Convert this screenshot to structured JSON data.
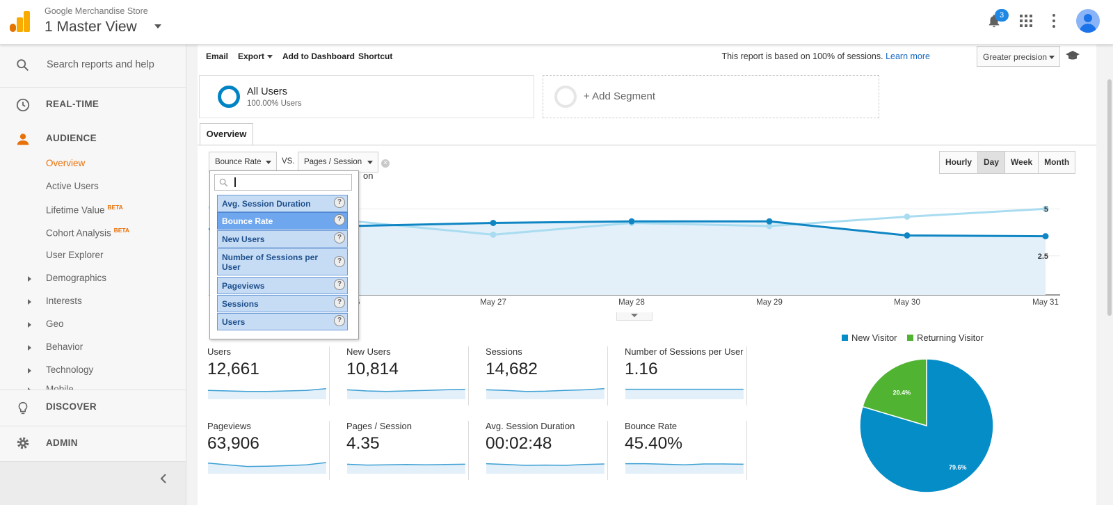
{
  "header": {
    "account_name": "Google Merchandise Store",
    "view_name": "1 Master View",
    "notification_count": "3"
  },
  "sidebar": {
    "search_placeholder": "Search reports and help",
    "realtime": "REAL-TIME",
    "audience": "AUDIENCE",
    "items": [
      {
        "label": "Overview",
        "badge": ""
      },
      {
        "label": "Active Users",
        "badge": ""
      },
      {
        "label": "Lifetime Value",
        "badge": "BETA"
      },
      {
        "label": "Cohort Analysis",
        "badge": "BETA"
      },
      {
        "label": "User Explorer",
        "badge": ""
      },
      {
        "label": "Demographics",
        "badge": ""
      },
      {
        "label": "Interests",
        "badge": ""
      },
      {
        "label": "Geo",
        "badge": ""
      },
      {
        "label": "Behavior",
        "badge": ""
      },
      {
        "label": "Technology",
        "badge": ""
      },
      {
        "label": "Mobile",
        "badge": ""
      }
    ],
    "discover": "DISCOVER",
    "admin": "ADMIN"
  },
  "toolbar": {
    "email": "Email",
    "export": "Export",
    "add_to_dashboard": "Add to Dashboard",
    "shortcut": "Shortcut",
    "report_note": "This report is based on 100% of sessions.",
    "learn_more": "Learn more",
    "precision": "Greater precision"
  },
  "segments": {
    "seg1_name": "All Users",
    "seg1_pct": "100.00% Users",
    "add_segment": "+ Add Segment"
  },
  "tabs": {
    "overview": "Overview"
  },
  "metric_selectors": {
    "primary": "Bounce Rate",
    "vs": "VS.",
    "secondary": "Pages / Session",
    "clear": "×"
  },
  "granularity": {
    "options": [
      "Hourly",
      "Day",
      "Week",
      "Month"
    ],
    "selected": "Day"
  },
  "dropdown": {
    "items": [
      "Avg. Session Duration",
      "Bounce Rate",
      "New Users",
      "Number of Sessions per User",
      "Pageviews",
      "Sessions",
      "Users"
    ],
    "selected": "Bounce Rate",
    "help_glyph": "?"
  },
  "chart_data": [
    {
      "type": "line",
      "x": [
        "May 26",
        "May 27",
        "May 28",
        "May 29",
        "May 30",
        "May 31"
      ],
      "x_tick_labels": [
        "26",
        "May 27",
        "May 28",
        "May 29",
        "May 30",
        "May 31"
      ],
      "series_title_fragment": "on",
      "y_right_ticks": [
        "5",
        "2.5"
      ],
      "series": [
        {
          "color": "#0f86c3",
          "values": [
            null,
            4.6,
            4.7,
            4.7,
            3.8,
            3.75
          ],
          "filled": true
        },
        {
          "color": "#a9dcf0",
          "values": [
            null,
            3.85,
            4.6,
            4.4,
            5.0,
            5.5
          ],
          "filled": false
        }
      ],
      "colors": {
        "area": "#e3f0fa"
      }
    },
    {
      "type": "pie",
      "legend_position": "top",
      "categories": [
        "New Visitor",
        "Returning Visitor"
      ],
      "values": [
        79.6,
        20.4
      ],
      "labels": [
        "79.6%",
        "20.4%"
      ],
      "colors": [
        "#058dc7",
        "#50b432"
      ]
    }
  ],
  "scorecards": [
    {
      "label": "Users",
      "value": "12,661"
    },
    {
      "label": "New Users",
      "value": "10,814"
    },
    {
      "label": "Sessions",
      "value": "14,682"
    },
    {
      "label": "Number of Sessions per User",
      "value": "1.16"
    },
    {
      "label": "Pageviews",
      "value": "63,906"
    },
    {
      "label": "Pages / Session",
      "value": "4.35"
    },
    {
      "label": "Avg. Session Duration",
      "value": "00:02:48"
    },
    {
      "label": "Bounce Rate",
      "value": "45.40%"
    }
  ],
  "colors": {
    "accent": "#e8710a",
    "link": "#1565c0",
    "brand": "#f9ab00"
  }
}
